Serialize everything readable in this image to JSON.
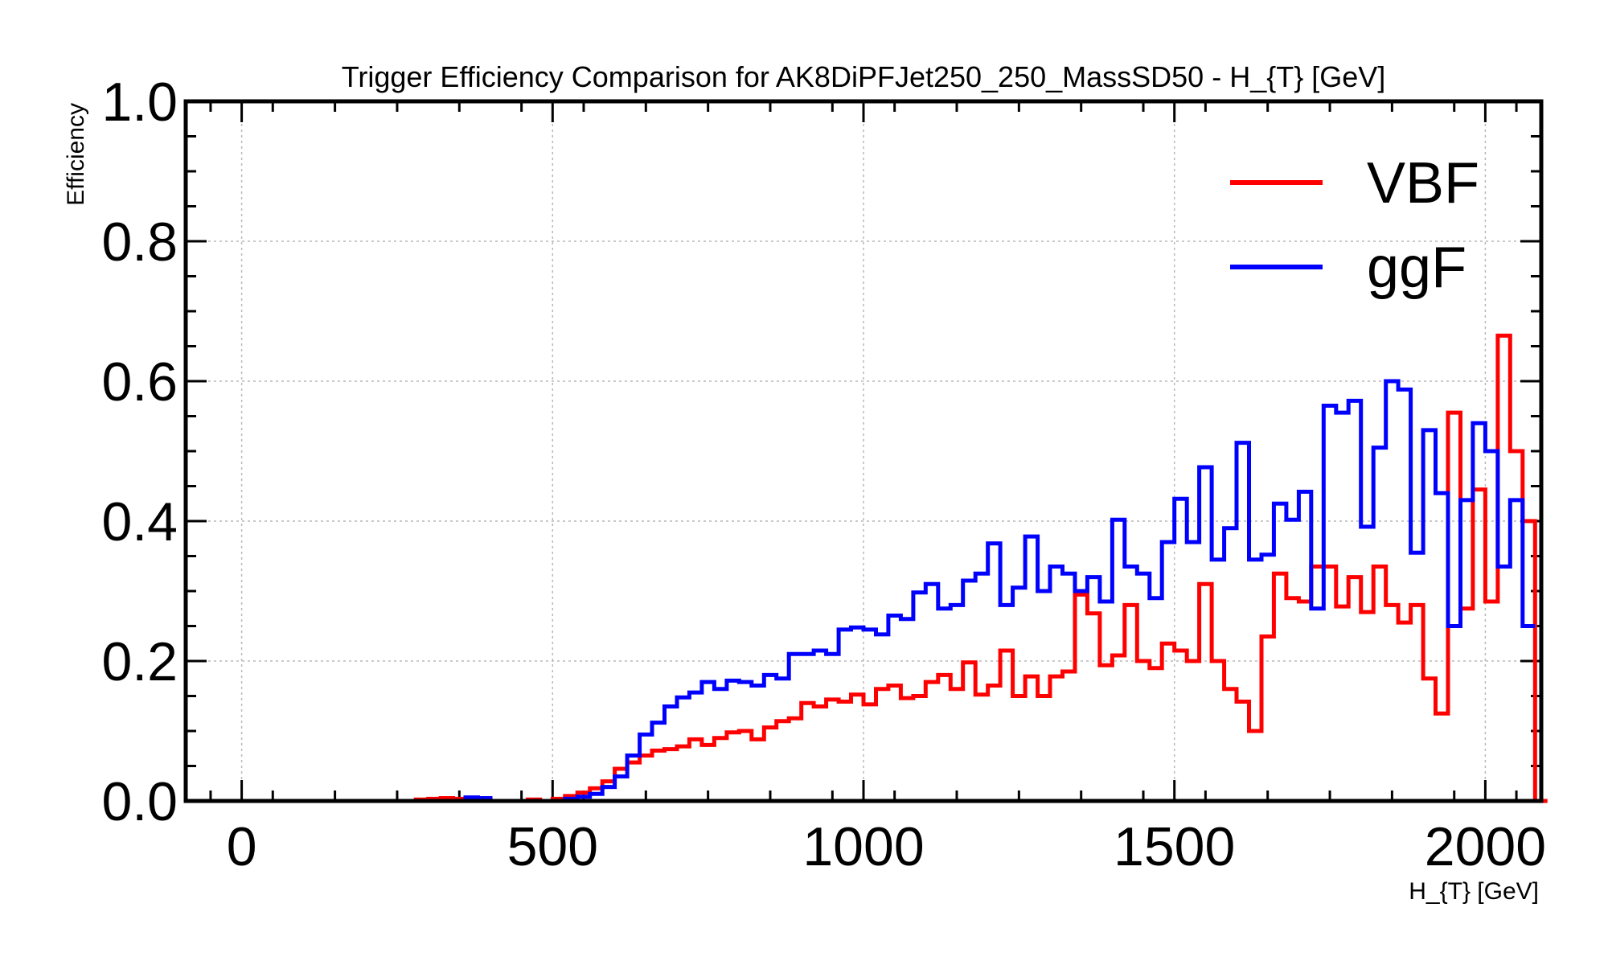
{
  "chart_data": {
    "type": "line",
    "title": "Trigger Efficiency Comparison for AK8DiPFJet250_250_MassSD50 - H_{T} [GeV]",
    "xlabel": "H_{T} [GeV]",
    "ylabel": "Efficiency",
    "xlim": [
      -90,
      2090
    ],
    "ylim": [
      0,
      1.0
    ],
    "xticks": [
      0,
      500,
      1000,
      1500,
      2000
    ],
    "xtick_labels": [
      "0",
      "500",
      "1000",
      "1500",
      "2000"
    ],
    "yticks": [
      0,
      0.2,
      0.4,
      0.6,
      0.8,
      1.0
    ],
    "ytick_labels": [
      "0.0",
      "0.2",
      "0.4",
      "0.6",
      "0.8",
      "1.0"
    ],
    "grid": true,
    "legend_position": "top-right",
    "bin_edges_start": 0,
    "bin_width": 20,
    "series": [
      {
        "name": "VBF",
        "color": "#ff0000",
        "values": [
          0,
          0,
          0,
          0,
          0,
          0,
          0,
          0,
          0,
          0,
          0,
          0,
          0,
          0,
          0.002,
          0.003,
          0.004,
          0.003,
          0,
          0,
          0,
          0,
          0,
          0.002,
          0,
          0.003,
          0.007,
          0.012,
          0.018,
          0.028,
          0.046,
          0.055,
          0.065,
          0.072,
          0.074,
          0.078,
          0.088,
          0.08,
          0.09,
          0.098,
          0.1,
          0.088,
          0.105,
          0.114,
          0.118,
          0.14,
          0.135,
          0.145,
          0.142,
          0.152,
          0.138,
          0.16,
          0.165,
          0.147,
          0.15,
          0.17,
          0.18,
          0.16,
          0.198,
          0.152,
          0.165,
          0.215,
          0.15,
          0.178,
          0.15,
          0.178,
          0.185,
          0.295,
          0.268,
          0.194,
          0.208,
          0.28,
          0.2,
          0.19,
          0.225,
          0.215,
          0.2,
          0.31,
          0.2,
          0.16,
          0.142,
          0.1,
          0.235,
          0.325,
          0.29,
          0.285,
          0.335,
          0.335,
          0.278,
          0.32,
          0.27,
          0.335,
          0.28,
          0.255,
          0.28,
          0.175,
          0.125,
          0.555,
          0.275,
          0.445,
          0.285,
          0.665,
          0.5,
          0.4,
          0
        ]
      },
      {
        "name": "ggF",
        "color": "#0000ff",
        "values": [
          0,
          0,
          0,
          0,
          0,
          0,
          0,
          0,
          0,
          0,
          0,
          0,
          0,
          0,
          0,
          0,
          0,
          0,
          0.005,
          0.004,
          0,
          0,
          0,
          0,
          0,
          0,
          0.003,
          0.006,
          0.01,
          0.02,
          0.035,
          0.065,
          0.095,
          0.112,
          0.135,
          0.148,
          0.155,
          0.17,
          0.16,
          0.172,
          0.17,
          0.165,
          0.18,
          0.175,
          0.21,
          0.21,
          0.215,
          0.21,
          0.245,
          0.248,
          0.245,
          0.238,
          0.265,
          0.26,
          0.298,
          0.31,
          0.275,
          0.28,
          0.315,
          0.325,
          0.368,
          0.28,
          0.305,
          0.378,
          0.3,
          0.335,
          0.325,
          0.3,
          0.32,
          0.285,
          0.402,
          0.335,
          0.325,
          0.29,
          0.37,
          0.432,
          0.37,
          0.477,
          0.345,
          0.39,
          0.512,
          0.345,
          0.352,
          0.425,
          0.402,
          0.442,
          0.275,
          0.565,
          0.555,
          0.572,
          0.392,
          0.505,
          0.6,
          0.588,
          0.355,
          0.53,
          0.44,
          0.25,
          0.43,
          0.54,
          0.5,
          0.335,
          0.43,
          0.25
        ]
      }
    ]
  }
}
